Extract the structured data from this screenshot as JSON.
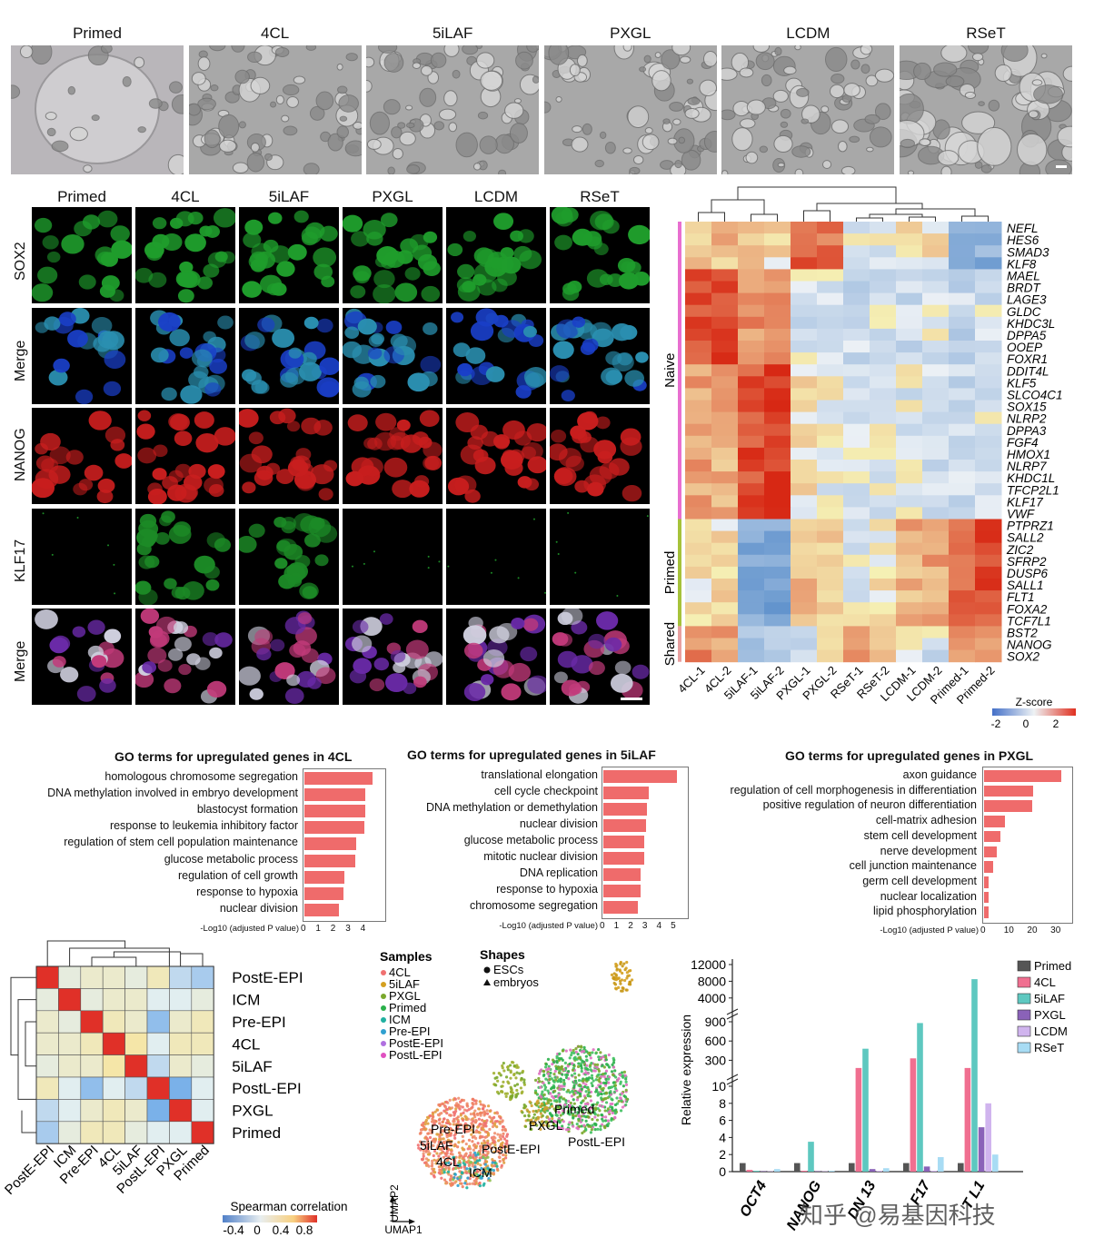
{
  "brightfield": {
    "labels": [
      "Primed",
      "4CL",
      "5iLAF",
      "PXGL",
      "LCDM",
      "RSeT"
    ]
  },
  "fluorescence": {
    "columns": [
      "Primed",
      "4CL",
      "5iLAF",
      "PXGL",
      "LCDM",
      "RSeT"
    ],
    "rows": [
      "SOX2",
      "Merge",
      "NANOG",
      "KLF17",
      "Merge"
    ],
    "colors": [
      "#1f9d2c",
      "#2a8fb0",
      "#c81e1e",
      "#1c8a26",
      "#a3279a"
    ]
  },
  "heatmap": {
    "samples": [
      "4CL-1",
      "4CL-2",
      "5iLAF-1",
      "5iLAF-2",
      "PXGL-1",
      "PXGL-2",
      "RSeT-1",
      "RSeT-2",
      "LCDM-1",
      "LCDM-2",
      "Primed-1",
      "Primed-2"
    ],
    "genes": [
      "NEFL",
      "HES6",
      "SMAD3",
      "KLF8",
      "MAEL",
      "BRDT",
      "LAGE3",
      "GLDC",
      "KHDC3L",
      "DPPA5",
      "OOEP",
      "FOXR1",
      "DDIT4L",
      "KLF5",
      "SLCO4C1",
      "SOX15",
      "NLRP2",
      "DPPA3",
      "FGF4",
      "HMOX1",
      "NLRP7",
      "KHDC1L",
      "TFCP2L1",
      "KLF17",
      "VWF",
      "PTPRZ1",
      "SALL2",
      "ZIC2",
      "SFRP2",
      "DUSP6",
      "SALL1",
      "FLT1",
      "FOXA2",
      "TCF7L1",
      "BST2",
      "NANOG",
      "SOX2"
    ],
    "groups": [
      {
        "name": "Naive",
        "color": "#e86fd0"
      },
      {
        "name": "Primed",
        "color": "#a6c23a"
      },
      {
        "name": "Shared",
        "color": "#e8a0a0"
      }
    ],
    "legend_title": "Z-score",
    "legend_ticks": [
      "-2",
      "0",
      "2"
    ]
  },
  "go": [
    {
      "title": "GO terms for upregulated genes in 4CL",
      "terms": [
        "homologous chromosome segregation",
        "DNA methylation involved in embryo development",
        "blastocyst formation",
        "response to leukemia inhibitory factor",
        "regulation of stem cell population maintenance",
        "glucose metabolic process",
        "regulation of cell growth",
        "response to hypoxia",
        "nuclear division"
      ],
      "values": [
        4.6,
        4.1,
        4.1,
        4.0,
        3.5,
        3.4,
        2.7,
        2.6,
        2.3
      ],
      "ticks": [
        "0",
        "1",
        "2",
        "3",
        "4"
      ],
      "max": 5,
      "xlabel": "-Log10 (adjusted P value)"
    },
    {
      "title": "GO terms for upregulated genes in 5iLAF",
      "terms": [
        "translational elongation",
        "cell cycle checkpoint",
        "DNA methylation or demethylation",
        "nuclear division",
        "glucose metabolic process",
        "mitotic nuclear division",
        "DNA replication",
        "response to hypoxia",
        "chromosome segregation"
      ],
      "values": [
        5.2,
        3.2,
        3.1,
        3.0,
        2.9,
        2.9,
        2.6,
        2.6,
        2.4
      ],
      "ticks": [
        "0",
        "1",
        "2",
        "3",
        "4",
        "5"
      ],
      "max": 5.5,
      "xlabel": "-Log10 (adjusted P value)"
    },
    {
      "title": "GO terms for upregulated genes in PXGL",
      "terms": [
        "axon guidance",
        "regulation of cell morphogenesis in differentiation",
        "positive regulation of neuron differentiation",
        "cell-matrix adhesion",
        "stem cell development",
        "nerve development",
        "cell junction maintenance",
        "germ cell development",
        "nuclear localization",
        "lipid phosphorylation"
      ],
      "values": [
        33,
        21,
        20.5,
        9,
        7,
        5.5,
        4,
        2,
        2,
        1.8
      ],
      "ticks": [
        "0",
        "10",
        "20",
        "30"
      ],
      "max": 35,
      "xlabel": "-Log10 (adjusted P value)"
    }
  ],
  "corr": {
    "labels": [
      "PostE-EPI",
      "ICM",
      "Pre-EPI",
      "4CL",
      "5iLAF",
      "PostL-EPI",
      "PXGL",
      "Primed"
    ],
    "legend_title": "Spearman correlation",
    "legend_ticks": [
      "-0.4",
      "0",
      "0.4",
      "0.8"
    ]
  },
  "umap": {
    "samples_title": "Samples",
    "samples": [
      {
        "name": "4CL",
        "color": "#f07070"
      },
      {
        "name": "5iLAF",
        "color": "#d4a020"
      },
      {
        "name": "PXGL",
        "color": "#7aa82c"
      },
      {
        "name": "Primed",
        "color": "#2ab04a"
      },
      {
        "name": "ICM",
        "color": "#20b0a0"
      },
      {
        "name": "Pre-EPI",
        "color": "#30a0d0"
      },
      {
        "name": "PostE-EPI",
        "color": "#b070e0"
      },
      {
        "name": "PostL-EPI",
        "color": "#e050c0"
      }
    ],
    "shapes_title": "Shapes",
    "shapes": [
      "ESCs",
      "embryos"
    ],
    "cluster_labels": [
      "Pre-EPI",
      "5iLAF",
      "4CL",
      "PostE-EPI",
      "ICM",
      "PXGL",
      "Primed",
      "PostL-EPI"
    ],
    "axis_x": "UMAP1",
    "axis_y": "UMAP2"
  },
  "chart_data": {
    "type": "bar",
    "categories": [
      "OCT4",
      "NANOG",
      "DNMT3L",
      "KLF17",
      "TFCP2L1"
    ],
    "series": [
      {
        "name": "Primed",
        "values": [
          1,
          1,
          1,
          1,
          1
        ]
      },
      {
        "name": "4CL",
        "values": [
          0.2,
          0.1,
          180,
          330,
          180
        ]
      },
      {
        "name": "5iLAF",
        "values": [
          0.1,
          3.5,
          480,
          880,
          8500
        ]
      },
      {
        "name": "PXGL",
        "values": [
          0.05,
          0.05,
          0.3,
          0.6,
          5.2
        ]
      },
      {
        "name": "LCDM",
        "values": [
          0.05,
          0.05,
          0.1,
          0.1,
          8
        ]
      },
      {
        "name": "RSeT",
        "values": [
          0.3,
          0.1,
          0.4,
          1.7,
          2
        ]
      }
    ],
    "colors": [
      "#555555",
      "#f06f90",
      "#5ec8c0",
      "#8a62b8",
      "#d0b4ee",
      "#a8dcf4"
    ],
    "ylabel": "Relative expression",
    "yticks_low": [
      "0",
      "2",
      "4",
      "6",
      "8",
      "10"
    ],
    "yticks_mid": [
      "300",
      "600",
      "900"
    ],
    "yticks_high": [
      "4000",
      "8000",
      "12000"
    ],
    "visible_xlabels": [
      "OCT4",
      "NANOG",
      "DN   13",
      "   F17",
      "T    L1"
    ]
  },
  "watermark": "知乎 @易基因科技"
}
